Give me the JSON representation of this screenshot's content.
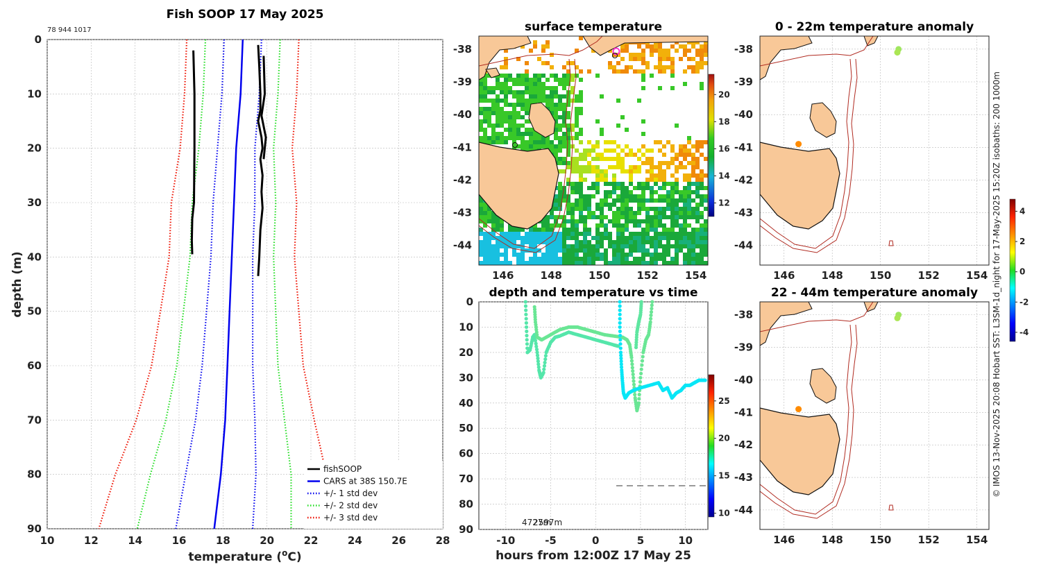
{
  "chart_data": [
    {
      "type": "line",
      "title": "Fish SOOP 17 May 2025",
      "corner_label": "78 944 1017",
      "xlabel_prefix": "temperature (",
      "xlabel_unit_sup": "o",
      "xlabel_suffix": "C)",
      "ylabel": "depth (m)",
      "xlim": [
        10,
        28
      ],
      "ylim": [
        90,
        0
      ],
      "xticks": [
        "10",
        "12",
        "14",
        "16",
        "18",
        "20",
        "22",
        "24",
        "26",
        "28"
      ],
      "yticks": [
        "0",
        "10",
        "20",
        "30",
        "40",
        "50",
        "60",
        "70",
        "80",
        "90"
      ],
      "depth_levels": [
        0,
        10,
        20,
        30,
        40,
        50,
        60,
        70,
        80,
        90
      ],
      "cars_mean": [
        18.9,
        18.8,
        18.6,
        18.5,
        18.4,
        18.3,
        18.2,
        18.1,
        17.9,
        17.6
      ],
      "cars_std": [
        0.85,
        0.85,
        0.85,
        0.95,
        0.95,
        1.05,
        1.15,
        1.35,
        1.6,
        1.75
      ],
      "fishsoop_profile_1": [
        [
          16.65,
          2
        ],
        [
          16.7,
          10
        ],
        [
          16.7,
          20
        ],
        [
          16.68,
          30
        ],
        [
          16.6,
          33
        ],
        [
          16.58,
          37
        ],
        [
          16.6,
          39.5
        ]
      ],
      "fishsoop_profile_2": [
        [
          19.6,
          1
        ],
        [
          19.65,
          5
        ],
        [
          19.7,
          10
        ],
        [
          19.7,
          13
        ],
        [
          19.6,
          15
        ],
        [
          19.75,
          18
        ],
        [
          19.8,
          20
        ],
        [
          19.7,
          22
        ],
        [
          19.8,
          25
        ],
        [
          19.75,
          28
        ],
        [
          19.8,
          31
        ],
        [
          19.7,
          35
        ],
        [
          19.65,
          40
        ],
        [
          19.6,
          43.5
        ]
      ],
      "fishsoop_profile_3": [
        [
          19.85,
          3
        ],
        [
          19.9,
          10
        ],
        [
          19.75,
          14
        ],
        [
          19.95,
          18
        ],
        [
          19.85,
          22
        ]
      ],
      "legend": [
        {
          "label": "fishSOOP",
          "color": "#000000",
          "style": "solid"
        },
        {
          "label": "CARS at 38S 150.7E",
          "color": "#0000ee",
          "style": "solid"
        },
        {
          "label": "+/- 1 std dev",
          "color": "#0000ee",
          "style": "dotted"
        },
        {
          "label": "+/- 2 std dev",
          "color": "#22dd22",
          "style": "dotted"
        },
        {
          "label": "+/- 3 std dev",
          "color": "#ee1100",
          "style": "dotted"
        }
      ]
    },
    {
      "type": "heatmap",
      "title": "surface temperature",
      "xticks": [
        "146",
        "148",
        "150",
        "152",
        "154"
      ],
      "yticks": [
        "-38",
        "-39",
        "-40",
        "-41",
        "-42",
        "-43",
        "-44"
      ],
      "xlim": [
        145,
        154.5
      ],
      "ylim": [
        -44.6,
        -37.6
      ],
      "colorbar_ticks": [
        "12",
        "14",
        "16",
        "18",
        "20"
      ],
      "colorbar_range": [
        11,
        21.5
      ]
    },
    {
      "type": "scatter",
      "title": "depth and temperature vs time",
      "xlabel": "hours from 12:00Z 17 May 25",
      "xlim": [
        -13,
        12.5
      ],
      "ylim": [
        90,
        0
      ],
      "xticks": [
        "-10",
        "-5",
        "0",
        "5",
        "10"
      ],
      "yticks": [
        "0",
        "10",
        "20",
        "30",
        "40",
        "50",
        "60",
        "70",
        "80",
        "90"
      ],
      "bottom_depth_label": "4727m",
      "bottom_depth_label_2": "2597m",
      "colorbar_ticks": [
        "10",
        "15",
        "20",
        "25"
      ],
      "colorbar_range": [
        9.5,
        28.5
      ],
      "series": [
        {
          "name": "first deployment",
          "temp": 18.2,
          "points": [
            [
              -7.8,
              0
            ],
            [
              -7.7,
              10
            ],
            [
              -7.6,
              20
            ],
            [
              -7.3,
              19
            ],
            [
              -7.0,
              14
            ],
            [
              -6.8,
              13
            ],
            [
              -6.5,
              20
            ],
            [
              -6.3,
              27
            ],
            [
              -6.1,
              30
            ],
            [
              -5.8,
              28
            ],
            [
              -5.5,
              20
            ],
            [
              -5.0,
              16
            ],
            [
              -4.5,
              14
            ],
            [
              -4.0,
              13.5
            ],
            [
              -3.0,
              12
            ],
            [
              -2.0,
              13
            ],
            [
              -1.0,
              14
            ],
            [
              0,
              15
            ],
            [
              1.0,
              16
            ],
            [
              2.0,
              17
            ],
            [
              2.5,
              17.5
            ]
          ]
        },
        {
          "name": "second deployment",
          "temp": 18.6,
          "points": [
            [
              -6.8,
              2
            ],
            [
              -6.7,
              8
            ],
            [
              -6.5,
              14
            ],
            [
              -6.0,
              15
            ],
            [
              -5.0,
              13
            ],
            [
              -4.0,
              11
            ],
            [
              -3.0,
              10
            ],
            [
              -2.0,
              10
            ],
            [
              -1.0,
              11
            ],
            [
              0,
              12
            ],
            [
              1.0,
              13
            ],
            [
              2.0,
              13.5
            ],
            [
              3.0,
              14
            ],
            [
              3.5,
              15
            ],
            [
              3.8,
              17
            ],
            [
              4.0,
              22
            ],
            [
              4.2,
              30
            ],
            [
              4.4,
              38
            ],
            [
              4.6,
              43
            ],
            [
              4.8,
              40
            ],
            [
              5.0,
              30
            ],
            [
              5.3,
              20
            ],
            [
              5.6,
              15
            ],
            [
              5.9,
              13
            ],
            [
              6.1,
              8
            ],
            [
              6.3,
              0
            ]
          ]
        },
        {
          "name": "third deployment",
          "temp": 16.8,
          "points": [
            [
              2.7,
              0
            ],
            [
              2.7,
              10
            ],
            [
              2.8,
              20
            ],
            [
              2.9,
              27
            ],
            [
              3.0,
              32
            ],
            [
              3.1,
              36
            ],
            [
              3.3,
              38
            ],
            [
              3.7,
              36
            ],
            [
              4.2,
              35
            ],
            [
              5.0,
              34
            ],
            [
              6.0,
              33
            ],
            [
              7.0,
              32
            ],
            [
              7.5,
              35
            ],
            [
              8.0,
              34
            ],
            [
              8.5,
              38
            ],
            [
              9.0,
              36
            ],
            [
              9.5,
              35
            ],
            [
              10.0,
              33
            ],
            [
              10.5,
              33
            ],
            [
              11.0,
              32
            ],
            [
              11.5,
              31
            ],
            [
              12.2,
              31
            ]
          ]
        },
        {
          "name": "second deployment upper",
          "temp": 18.4,
          "points": [
            [
              4.5,
              18
            ],
            [
              4.6,
              12
            ],
            [
              4.8,
              8
            ],
            [
              5.0,
              5
            ],
            [
              5.1,
              0
            ]
          ]
        }
      ]
    },
    {
      "type": "scatter",
      "title": "0 - 22m temperature anomaly",
      "xticks": [
        "146",
        "148",
        "150",
        "152",
        "154"
      ],
      "yticks": [
        "-38",
        "-39",
        "-40",
        "-41",
        "-42",
        "-43",
        "-44"
      ],
      "xlim": [
        145,
        154.5
      ],
      "ylim": [
        -44.6,
        -37.6
      ],
      "points": [
        {
          "lon": 150.75,
          "lat": -38.0,
          "anom": 0.4
        },
        {
          "lon": 150.7,
          "lat": -38.1,
          "anom": 0.5
        },
        {
          "lon": 146.6,
          "lat": -40.9,
          "anom": 2.2
        }
      ]
    },
    {
      "type": "scatter",
      "title": "22 - 44m temperature anomaly",
      "xticks": [
        "146",
        "148",
        "150",
        "152",
        "154"
      ],
      "yticks": [
        "-38",
        "-39",
        "-40",
        "-41",
        "-42",
        "-43",
        "-44"
      ],
      "xlim": [
        145,
        154.5
      ],
      "ylim": [
        -44.6,
        -37.6
      ],
      "points": [
        {
          "lon": 150.75,
          "lat": -38.0,
          "anom": 0.4
        },
        {
          "lon": 150.7,
          "lat": -38.1,
          "anom": 0.5
        },
        {
          "lon": 146.6,
          "lat": -40.9,
          "anom": 2.2
        }
      ],
      "colorbar_ticks": [
        "-4",
        "-2",
        "0",
        "2",
        "4"
      ],
      "colorbar_range": [
        -4.6,
        4.8
      ]
    }
  ],
  "credit": "© IMOS 13-Nov-2025 20:08 Hobart SST: L3SM-1d_night for 17-May-2025 15:20Z isobaths: 200  1000m",
  "colors": {
    "land": "#f8c898",
    "isobath": "#b02a20",
    "grid": "#b8b8b8"
  }
}
